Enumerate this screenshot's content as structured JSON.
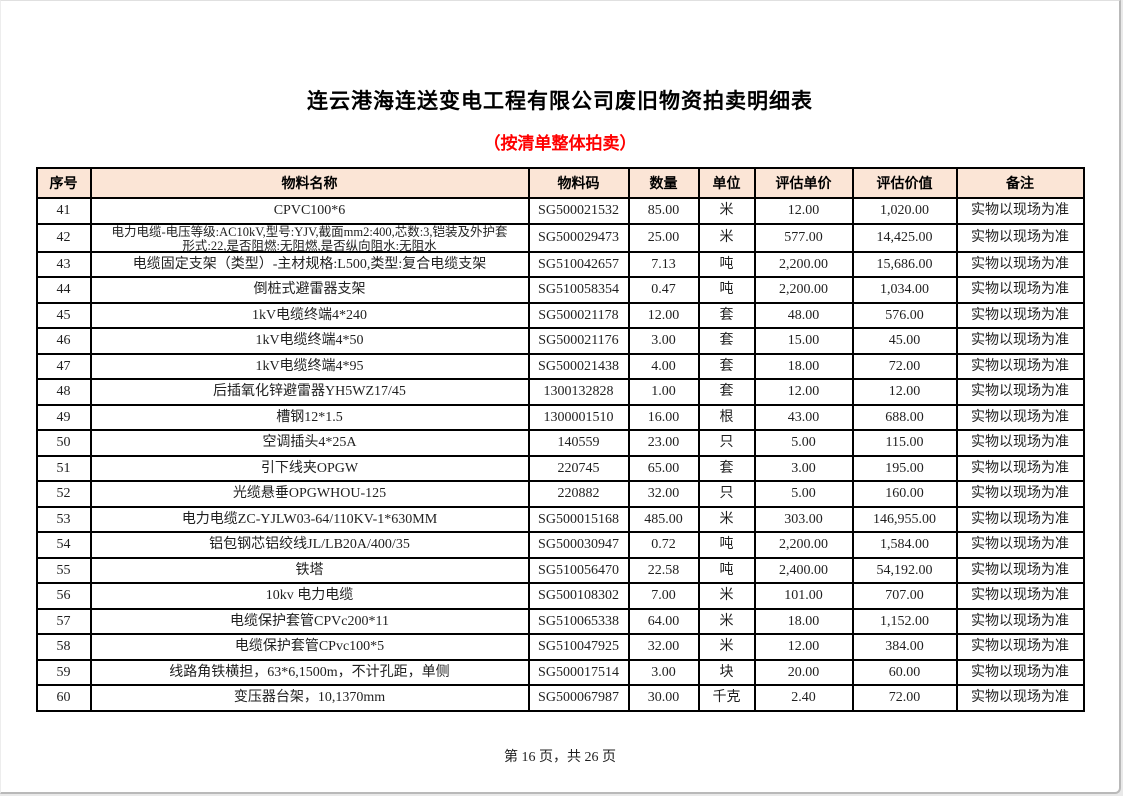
{
  "document": {
    "title": "连云港海连送变电工程有限公司废旧物资拍卖明细表",
    "subtitle": "（按清单整体拍卖）",
    "subtitle_color": "#ff0000",
    "header_bg_color": "#fbe5d6",
    "footer_page_text": "第 16 页，共 26 页"
  },
  "table": {
    "headers": [
      "序号",
      "物料名称",
      "物料码",
      "数量",
      "单位",
      "评估单价",
      "评估价值",
      "备注"
    ],
    "rows": [
      {
        "seq": "41",
        "name": "CPVC100*6",
        "name2": "",
        "code": "SG500021532",
        "qty": "85.00",
        "unit": "米",
        "unit_price": "12.00",
        "value": "1,020.00",
        "note": "实物以现场为准"
      },
      {
        "seq": "42",
        "name": "电力电缆-电压等级:AC10kV,型号:YJV,截面mm2:400,芯数:3,铠装及外护套",
        "name2": "形式:22,是否阻燃:无阻燃,是否纵向阻水:无阻水",
        "code": "SG500029473",
        "qty": "25.00",
        "unit": "米",
        "unit_price": "577.00",
        "value": "14,425.00",
        "note": "实物以现场为准"
      },
      {
        "seq": "43",
        "name": "电缆固定支架（类型）-主材规格:L500,类型:复合电缆支架",
        "name2": "",
        "code": "SG510042657",
        "qty": "7.13",
        "unit": "吨",
        "unit_price": "2,200.00",
        "value": "15,686.00",
        "note": "实物以现场为准"
      },
      {
        "seq": "44",
        "name": "倒桩式避雷器支架",
        "name2": "",
        "code": "SG510058354",
        "qty": "0.47",
        "unit": "吨",
        "unit_price": "2,200.00",
        "value": "1,034.00",
        "note": "实物以现场为准"
      },
      {
        "seq": "45",
        "name": "1kV电缆终端4*240",
        "name2": "",
        "code": "SG500021178",
        "qty": "12.00",
        "unit": "套",
        "unit_price": "48.00",
        "value": "576.00",
        "note": "实物以现场为准"
      },
      {
        "seq": "46",
        "name": "1kV电缆终端4*50",
        "name2": "",
        "code": "SG500021176",
        "qty": "3.00",
        "unit": "套",
        "unit_price": "15.00",
        "value": "45.00",
        "note": "实物以现场为准"
      },
      {
        "seq": "47",
        "name": "1kV电缆终端4*95",
        "name2": "",
        "code": "SG500021438",
        "qty": "4.00",
        "unit": "套",
        "unit_price": "18.00",
        "value": "72.00",
        "note": "实物以现场为准"
      },
      {
        "seq": "48",
        "name": "后插氧化锌避雷器YH5WZ17/45",
        "name2": "",
        "code": "1300132828",
        "qty": "1.00",
        "unit": "套",
        "unit_price": "12.00",
        "value": "12.00",
        "note": "实物以现场为准"
      },
      {
        "seq": "49",
        "name": "槽钢12*1.5",
        "name2": "",
        "code": "1300001510",
        "qty": "16.00",
        "unit": "根",
        "unit_price": "43.00",
        "value": "688.00",
        "note": "实物以现场为准"
      },
      {
        "seq": "50",
        "name": "空调插头4*25A",
        "name2": "",
        "code": "140559",
        "qty": "23.00",
        "unit": "只",
        "unit_price": "5.00",
        "value": "115.00",
        "note": "实物以现场为准"
      },
      {
        "seq": "51",
        "name": "引下线夹OPGW",
        "name2": "",
        "code": "220745",
        "qty": "65.00",
        "unit": "套",
        "unit_price": "3.00",
        "value": "195.00",
        "note": "实物以现场为准"
      },
      {
        "seq": "52",
        "name": "光缆悬垂OPGWHOU-125",
        "name2": "",
        "code": "220882",
        "qty": "32.00",
        "unit": "只",
        "unit_price": "5.00",
        "value": "160.00",
        "note": "实物以现场为准"
      },
      {
        "seq": "53",
        "name": "电力电缆ZC-YJLW03-64/110KV-1*630MM",
        "name2": "",
        "code": "SG500015168",
        "qty": "485.00",
        "unit": "米",
        "unit_price": "303.00",
        "value": "146,955.00",
        "note": "实物以现场为准"
      },
      {
        "seq": "54",
        "name": "铝包钢芯铝绞线JL/LB20A/400/35",
        "name2": "",
        "code": "SG500030947",
        "qty": "0.72",
        "unit": "吨",
        "unit_price": "2,200.00",
        "value": "1,584.00",
        "note": "实物以现场为准"
      },
      {
        "seq": "55",
        "name": "铁塔",
        "name2": "",
        "code": "SG510056470",
        "qty": "22.58",
        "unit": "吨",
        "unit_price": "2,400.00",
        "value": "54,192.00",
        "note": "实物以现场为准"
      },
      {
        "seq": "56",
        "name": "10kv 电力电缆",
        "name2": "",
        "code": "SG500108302",
        "qty": "7.00",
        "unit": "米",
        "unit_price": "101.00",
        "value": "707.00",
        "note": "实物以现场为准"
      },
      {
        "seq": "57",
        "name": "电缆保护套管CPVc200*11",
        "name2": "",
        "code": "SG510065338",
        "qty": "64.00",
        "unit": "米",
        "unit_price": "18.00",
        "value": "1,152.00",
        "note": "实物以现场为准"
      },
      {
        "seq": "58",
        "name": "电缆保护套管CPvc100*5",
        "name2": "",
        "code": "SG510047925",
        "qty": "32.00",
        "unit": "米",
        "unit_price": "12.00",
        "value": "384.00",
        "note": "实物以现场为准"
      },
      {
        "seq": "59",
        "name": "线路角铁横担，63*6,1500m，不计孔距，单侧",
        "name2": "",
        "code": "SG500017514",
        "qty": "3.00",
        "unit": "块",
        "unit_price": "20.00",
        "value": "60.00",
        "note": "实物以现场为准"
      },
      {
        "seq": "60",
        "name": "变压器台架，10,1370mm",
        "name2": "",
        "code": "SG500067987",
        "qty": "30.00",
        "unit": "千克",
        "unit_price": "2.40",
        "value": "72.00",
        "note": "实物以现场为准"
      }
    ]
  }
}
